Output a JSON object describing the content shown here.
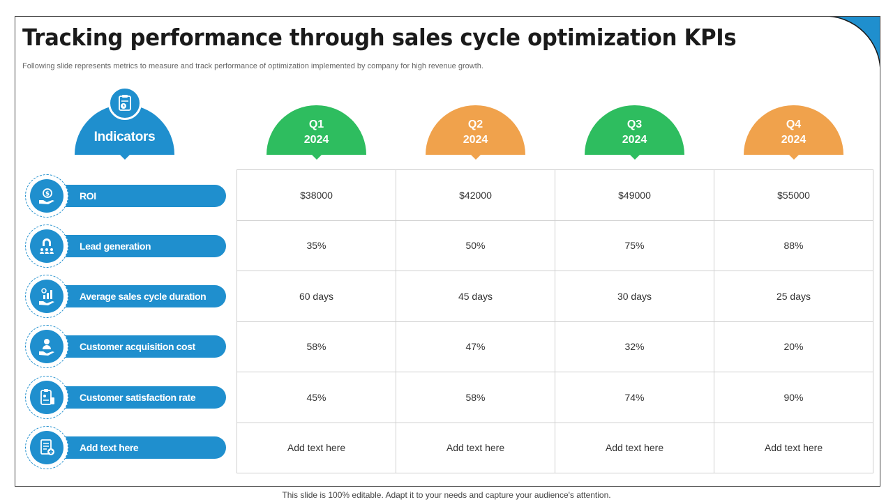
{
  "title": "Tracking performance through sales cycle optimization KPIs",
  "subtitle": "Following slide represents metrics to measure and track performance of optimization implemented by company for high revenue growth.",
  "indicators_header": "Indicators",
  "quarters": [
    {
      "q": "Q1",
      "year": "2024",
      "color": "#2ebd5f"
    },
    {
      "q": "Q2",
      "year": "2024",
      "color": "#f0a24c"
    },
    {
      "q": "Q3",
      "year": "2024",
      "color": "#2ebd5f"
    },
    {
      "q": "Q4",
      "year": "2024",
      "color": "#f0a24c"
    }
  ],
  "rows": [
    {
      "label": "ROI",
      "icon": "roi-hand-coin-icon",
      "values": [
        "$38000",
        "$42000",
        "$49000",
        "$55000"
      ]
    },
    {
      "label": "Lead generation",
      "icon": "magnet-people-icon",
      "values": [
        "35%",
        "50%",
        "75%",
        "88%"
      ]
    },
    {
      "label": "Average sales cycle duration",
      "icon": "growth-chart-hand-icon",
      "values": [
        "60 days",
        "45 days",
        "30 days",
        "25 days"
      ]
    },
    {
      "label": "Customer acquisition cost",
      "icon": "person-hand-icon",
      "values": [
        "58%",
        "47%",
        "32%",
        "20%"
      ]
    },
    {
      "label": "Customer satisfaction rate",
      "icon": "clipboard-rating-icon",
      "values": [
        "45%",
        "58%",
        "74%",
        "90%"
      ]
    },
    {
      "label": "Add text here",
      "icon": "document-add-icon",
      "values": [
        "Add text here",
        "Add text here",
        "Add text here",
        "Add text here"
      ]
    }
  ],
  "footer": "This slide is 100% editable. Adapt it to your needs and capture your audience's attention.",
  "colors": {
    "blue": "#1f8fce",
    "green": "#2ebd5f",
    "orange": "#f0a24c"
  }
}
